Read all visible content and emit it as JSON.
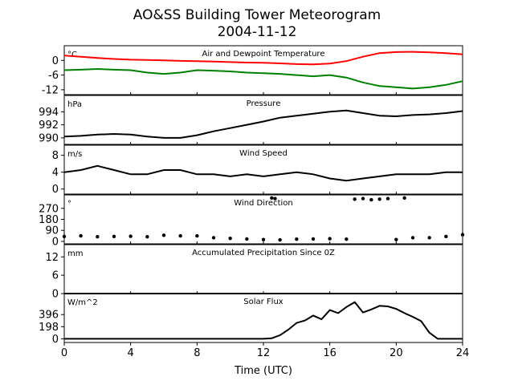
{
  "title": "AO&SS Building Tower Meteorogram",
  "subtitle": "2004-11-12",
  "xlabel": "Time (UTC)",
  "x_ticks": [
    0,
    4,
    8,
    12,
    16,
    20,
    24
  ],
  "chart_data": [
    {
      "type": "line",
      "title": "Air and Dewpoint Temperature",
      "unit": "°C",
      "ylim": [
        -14,
        6
      ],
      "y_ticks": [
        -12,
        -6,
        0
      ],
      "series": [
        {
          "color": "#ff0000",
          "x": [
            0,
            1,
            2,
            3,
            4,
            5,
            6,
            7,
            8,
            9,
            10,
            11,
            12,
            13,
            14,
            15,
            16,
            17,
            18,
            19,
            20,
            21,
            22,
            23,
            24
          ],
          "values": [
            2,
            1.5,
            1,
            0.6,
            0.3,
            0.2,
            0,
            -0.2,
            -0.3,
            -0.5,
            -0.7,
            -0.9,
            -1,
            -1.2,
            -1.5,
            -1.6,
            -1.3,
            -0.3,
            1.5,
            3,
            3.4,
            3.5,
            3.3,
            3,
            2.5
          ]
        },
        {
          "color": "#008000",
          "x": [
            0,
            1,
            2,
            3,
            4,
            5,
            6,
            7,
            8,
            9,
            10,
            11,
            12,
            13,
            14,
            15,
            16,
            17,
            18,
            19,
            20,
            21,
            22,
            23,
            24
          ],
          "values": [
            -4,
            -3.8,
            -3.5,
            -3.8,
            -4,
            -5,
            -5.5,
            -5,
            -4,
            -4.2,
            -4.5,
            -5,
            -5.2,
            -5.5,
            -6,
            -6.5,
            -6,
            -7,
            -9,
            -10.5,
            -11,
            -11.5,
            -11,
            -10,
            -8.5
          ]
        }
      ]
    },
    {
      "type": "line",
      "title": "Pressure",
      "unit": "hPa",
      "ylim": [
        989,
        996.5
      ],
      "y_ticks": [
        990,
        992,
        994
      ],
      "series": [
        {
          "color": "#000000",
          "x": [
            0,
            1,
            2,
            3,
            4,
            5,
            6,
            7,
            8,
            9,
            10,
            11,
            12,
            13,
            14,
            15,
            16,
            17,
            18,
            19,
            20,
            21,
            22,
            23,
            24
          ],
          "values": [
            990.2,
            990.3,
            990.5,
            990.6,
            990.5,
            990.2,
            990,
            990,
            990.4,
            991,
            991.5,
            992,
            992.5,
            993.1,
            993.4,
            993.7,
            994,
            994.2,
            993.8,
            993.4,
            993.3,
            993.5,
            993.6,
            993.8,
            994.1
          ]
        }
      ]
    },
    {
      "type": "line",
      "title": "Wind Speed",
      "unit": "m/s",
      "ylim": [
        -1.2,
        10.4
      ],
      "y_ticks": [
        0,
        4,
        8
      ],
      "series": [
        {
          "color": "#000000",
          "x": [
            0,
            1,
            2,
            3,
            4,
            5,
            6,
            7,
            8,
            9,
            10,
            11,
            12,
            13,
            14,
            15,
            16,
            17,
            18,
            19,
            20,
            21,
            22,
            23,
            24
          ],
          "values": [
            4,
            4.5,
            5.5,
            4.5,
            3.5,
            3.5,
            4.5,
            4.5,
            3.5,
            3.5,
            3,
            3.5,
            3,
            3.5,
            4,
            3.5,
            2.5,
            2,
            2.5,
            3,
            3.5,
            3.5,
            3.5,
            4,
            4
          ]
        }
      ]
    },
    {
      "type": "scatter",
      "title": "Wind Direction",
      "unit": "°",
      "ylim": [
        -20,
        380
      ],
      "y_ticks": [
        0,
        90,
        180,
        270
      ],
      "series": [
        {
          "color": "#000000",
          "x": [
            0,
            1,
            2,
            3,
            4,
            5,
            6,
            7,
            8,
            9,
            10,
            11,
            12,
            12.5,
            12.7,
            13,
            14,
            15,
            16,
            17,
            17.5,
            18,
            18.5,
            19,
            19.5,
            20,
            20.5,
            21,
            22,
            23,
            24
          ],
          "values": [
            40,
            45,
            38,
            40,
            42,
            38,
            50,
            45,
            45,
            30,
            25,
            20,
            15,
            355,
            350,
            12,
            18,
            20,
            22,
            18,
            345,
            350,
            340,
            345,
            350,
            15,
            355,
            30,
            30,
            40,
            55
          ]
        }
      ]
    },
    {
      "type": "line",
      "title": "Accumulated Precipitation Since 0Z",
      "unit": "mm",
      "ylim": [
        0,
        16
      ],
      "y_ticks": [
        0,
        6,
        12
      ],
      "series": [
        {
          "color": "#000000",
          "x": [
            0,
            24
          ],
          "values": [
            0,
            0
          ]
        }
      ]
    },
    {
      "type": "line",
      "title": "Solar Flux",
      "unit": "W/m^2",
      "ylim": [
        -60,
        740
      ],
      "y_ticks": [
        0,
        198,
        396
      ],
      "series": [
        {
          "color": "#000000",
          "x": [
            0,
            12,
            12.5,
            13,
            13.5,
            14,
            14.5,
            15,
            15.5,
            16,
            16.5,
            17,
            17.5,
            18,
            18.5,
            19,
            19.5,
            20,
            20.5,
            21,
            21.5,
            22,
            22.5,
            23,
            24
          ],
          "values": [
            0,
            0,
            10,
            60,
            150,
            260,
            300,
            380,
            320,
            470,
            420,
            520,
            600,
            430,
            480,
            540,
            530,
            490,
            420,
            360,
            290,
            100,
            0,
            0,
            0
          ]
        }
      ]
    }
  ]
}
